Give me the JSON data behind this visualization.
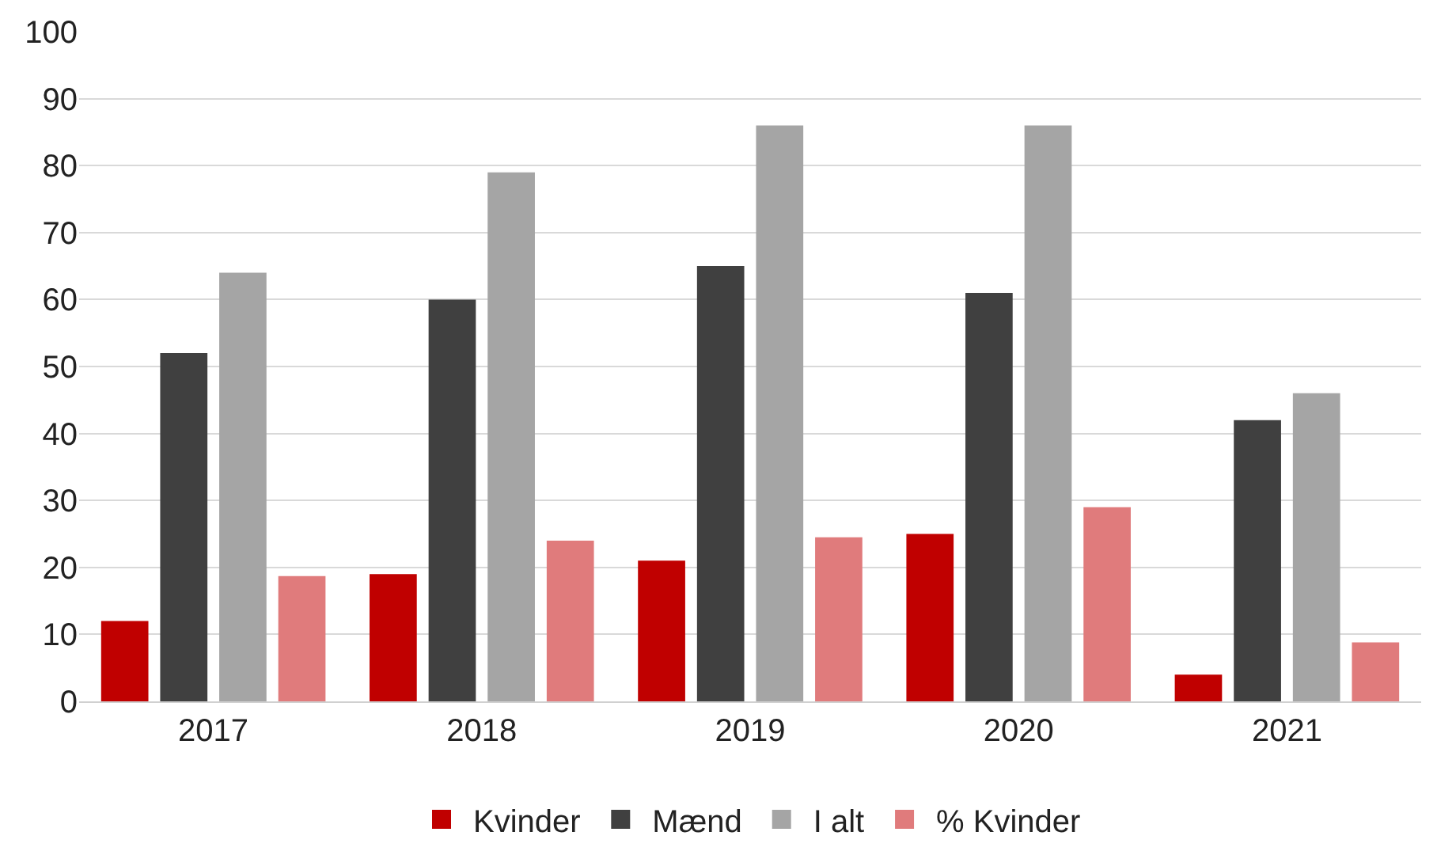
{
  "chart_data": {
    "type": "bar",
    "categories": [
      "2017",
      "2018",
      "2019",
      "2020",
      "2021"
    ],
    "series": [
      {
        "name": "Kvinder",
        "color": "#c00000",
        "values": [
          12,
          19,
          21,
          25,
          4
        ]
      },
      {
        "name": "Mænd",
        "color": "#404040",
        "values": [
          52,
          60,
          65,
          61,
          42
        ]
      },
      {
        "name": "I alt",
        "color": "#a5a5a5",
        "values": [
          64,
          79,
          86,
          86,
          46
        ]
      },
      {
        "name": "% Kvinder",
        "color": "#e07b7c",
        "values": [
          18.7,
          24,
          24.5,
          29,
          8.8
        ]
      }
    ],
    "ylim": [
      0,
      100
    ],
    "yticks": [
      0,
      10,
      20,
      30,
      40,
      50,
      60,
      70,
      80,
      90,
      100
    ],
    "grid": "y",
    "legend": "bottom"
  }
}
